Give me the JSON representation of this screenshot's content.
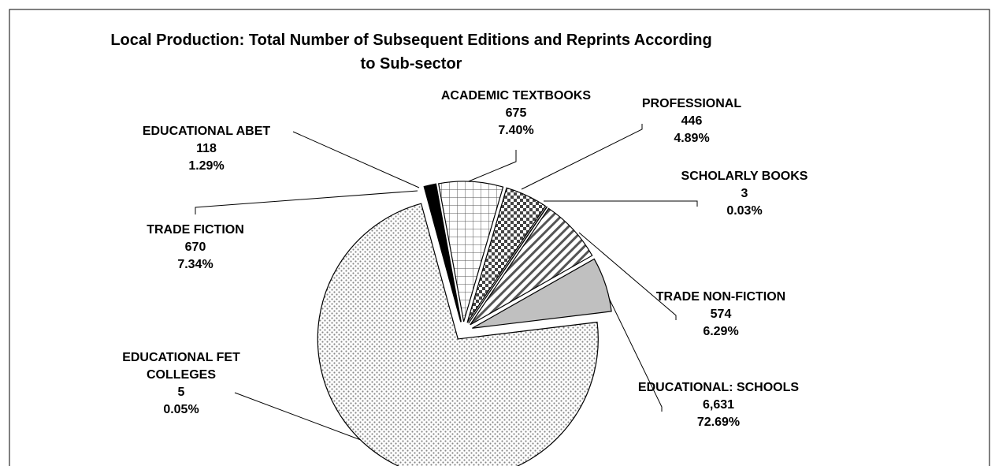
{
  "chart_data": {
    "type": "pie",
    "title": "Local Production: Total Number of Subsequent Editions and Reprints According to Sub-sector",
    "categories": [
      "EDUCATIONAL ABET",
      "ACADEMIC TEXTBOOKS",
      "PROFESSIONAL",
      "SCHOLARLY BOOKS",
      "TRADE FICTION",
      "TRADE NON-FICTION",
      "EDUCATIONAL: SCHOOLS",
      "EDUCATIONAL FET COLLEGES"
    ],
    "values": [
      118,
      675,
      446,
      3,
      670,
      574,
      6631,
      5
    ],
    "value_labels": [
      "118",
      "675",
      "446",
      "3",
      "670",
      "574",
      "6,631",
      "5"
    ],
    "percentages": [
      1.29,
      7.4,
      4.89,
      0.03,
      7.34,
      6.29,
      72.69,
      0.05
    ],
    "percentage_labels": [
      "1.29%",
      "7.40%",
      "4.89%",
      "0.03%",
      "7.34%",
      "6.29%",
      "72.69%",
      "0.05%"
    ],
    "colors": [
      "#000000",
      "#ffffff",
      "#ffffff",
      "#ffffff",
      "#ffffff",
      "#c0c0c0",
      "#ffffff",
      "#ffffff"
    ],
    "patterns": [
      "solid",
      "grid",
      "checker",
      "solid",
      "diagonal",
      "solid",
      "dots",
      "solid"
    ]
  }
}
